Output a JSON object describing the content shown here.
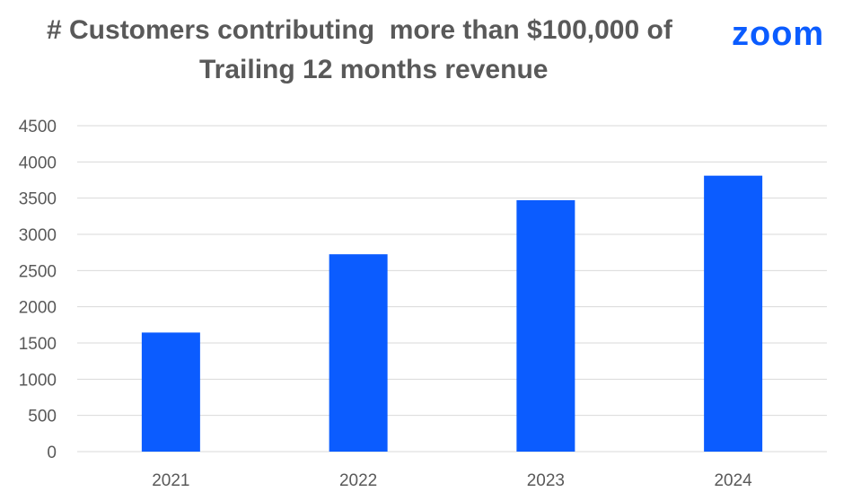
{
  "header": {
    "title_line_1": "# Customers contributing  more than $100,000 of",
    "title_line_2": "Trailing 12 months revenue"
  },
  "logo": {
    "text": "zoom",
    "color": "#0b5cff"
  },
  "colors": {
    "bar": "#0b5cff",
    "grid": "#d9d9d9",
    "tick_label": "#595959",
    "title": "#595959"
  },
  "chart_data": {
    "type": "bar",
    "title": "# Customers contributing  more than $100,000 of Trailing 12 months revenue",
    "xlabel": "",
    "ylabel": "",
    "categories": [
      "2021",
      "2022",
      "2023",
      "2024"
    ],
    "values": [
      1644,
      2725,
      3471,
      3810
    ],
    "ylim": [
      0,
      4500
    ],
    "yticks": [
      "0",
      "500",
      "1000",
      "1500",
      "2000",
      "2500",
      "3000",
      "3500",
      "4000",
      "4500"
    ],
    "grid": true,
    "legend": "none"
  }
}
